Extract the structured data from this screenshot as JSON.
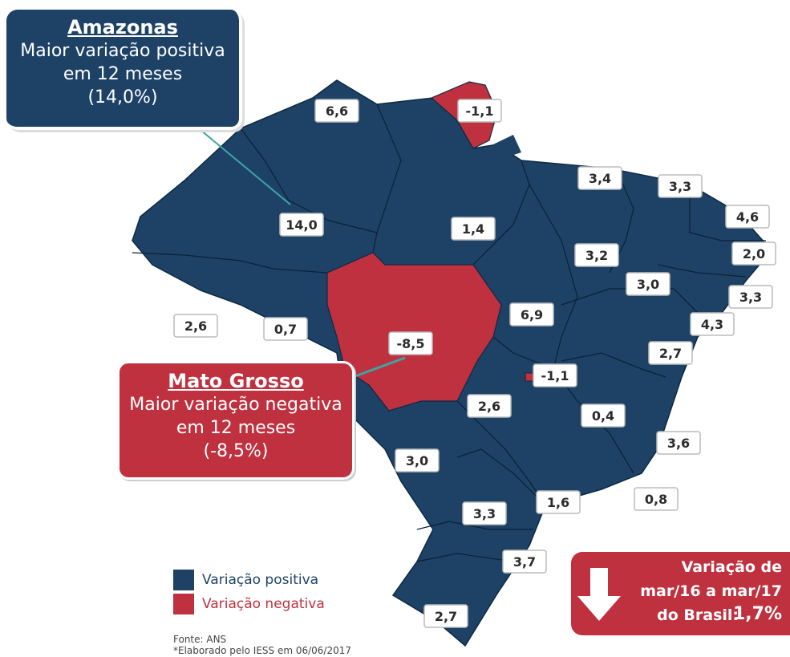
{
  "callouts": [
    {
      "title": "Amazonas",
      "lines": [
        "Maior variação positiva",
        "em 12 meses",
        "(14,0%)"
      ]
    },
    {
      "title": "Mato Grosso",
      "lines": [
        "Maior variação negativa",
        "em 12 meses",
        "(-8,5%)"
      ]
    }
  ],
  "map": {
    "labels": [
      "6,6",
      "-1,1",
      "14,0",
      "1,4",
      "3,4",
      "3,3",
      "4,6",
      "2,0",
      "3,2",
      "3,0",
      "3,3",
      "4,3",
      "6,9",
      "2,6",
      "0,7",
      "-8,5",
      "-1,1",
      "2,7",
      "2,6",
      "0,4",
      "3,6",
      "3,0",
      "1,6",
      "0,8",
      "3,3",
      "3,7",
      "2,7"
    ]
  },
  "legend": [
    {
      "label": "Variação positiva",
      "color": "#1d4266"
    },
    {
      "label": "Variação negativa",
      "color": "#c0313f"
    }
  ],
  "source": [
    "Fonte: ANS",
    "*Elaborado pelo IESS em 06/06/2017"
  ],
  "summary": {
    "lines": [
      "Variação  de",
      "mar/16 a mar/17",
      "do Brasil:"
    ],
    "value": "1,7%"
  }
}
